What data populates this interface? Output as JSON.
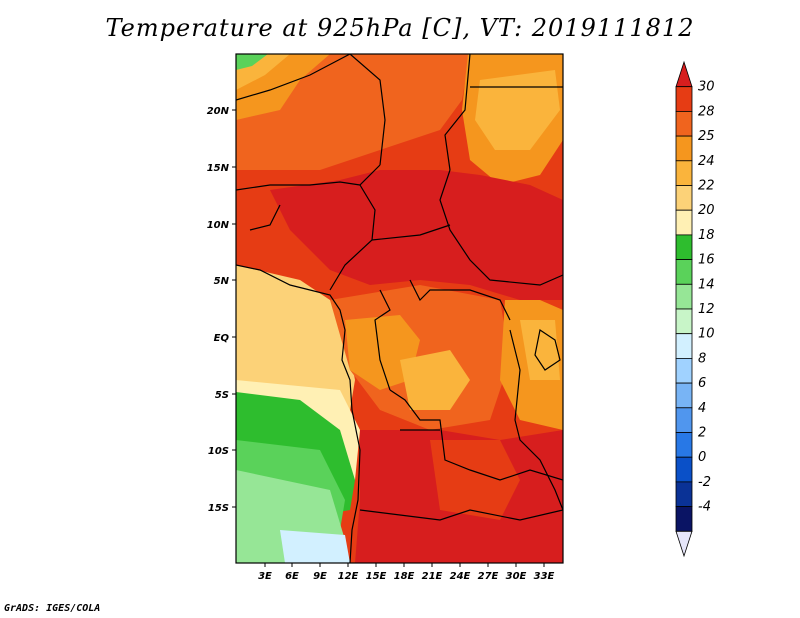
{
  "title": "Temperature at 925hPa [C], VT: 2019111812",
  "footer": "GrADS: IGES/COLA",
  "map": {
    "lat_labels": [
      "20N",
      "15N",
      "10N",
      "5N",
      "EQ",
      "5S",
      "10S",
      "15S"
    ],
    "lon_labels": [
      "3E",
      "6E",
      "9E",
      "12E",
      "15E",
      "18E",
      "21E",
      "24E",
      "27E",
      "30E",
      "33E"
    ]
  },
  "colorbar": {
    "levels": [
      "30",
      "28",
      "25",
      "24",
      "22",
      "20",
      "18",
      "16",
      "14",
      "12",
      "10",
      "8",
      "6",
      "4",
      "2",
      "0",
      "-2",
      "-4"
    ],
    "colors": [
      "#d71e1e",
      "#e63c14",
      "#f0641e",
      "#f5961e",
      "#fab43c",
      "#fcd278",
      "#fff0b4",
      "#2ebd2e",
      "#5ad25a",
      "#96e696",
      "#c8f5c8",
      "#d2f0ff",
      "#a0d2ff",
      "#78b4f5",
      "#5096ee",
      "#2878e6",
      "#0a50c8",
      "#0a3296",
      "#0a1464",
      "#e6e6fa"
    ]
  }
}
